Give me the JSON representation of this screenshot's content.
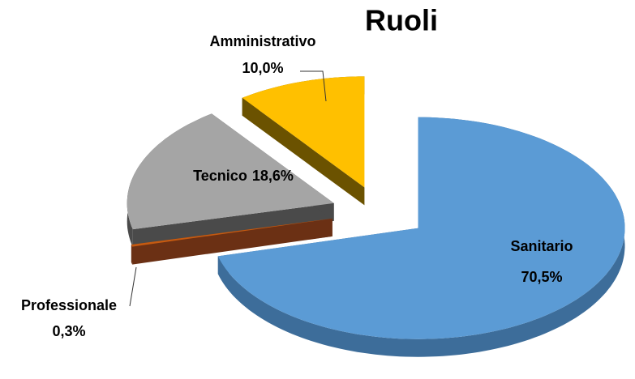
{
  "chart_data": {
    "type": "pie",
    "title": "Ruoli",
    "categories": [
      "Sanitario",
      "Professionale",
      "Tecnico",
      "Amministrativo"
    ],
    "values": [
      70.5,
      0.3,
      18.6,
      10.0
    ],
    "value_labels": [
      "70,5%",
      "0,3%",
      "18,6%",
      "10,0%"
    ],
    "colors": [
      "#5b9bd5",
      "#c55a11",
      "#a5a5a5",
      "#ffc000"
    ],
    "side_colors": [
      "#3d6d9a",
      "#6b3014",
      "#4a4a4a",
      "#6b5200"
    ],
    "explode": true,
    "perspective": "3d"
  }
}
